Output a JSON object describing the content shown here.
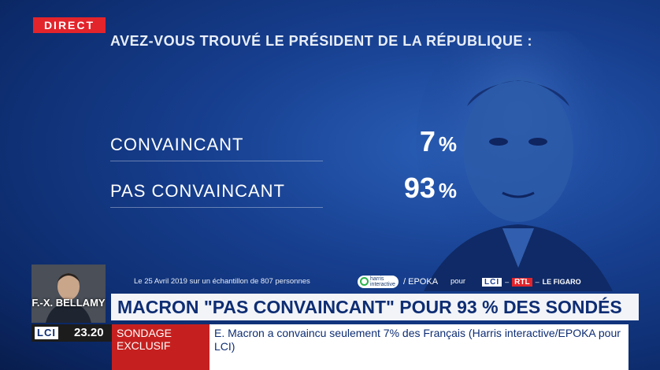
{
  "live_badge": "DIRECT",
  "poll": {
    "question": "AVEZ-VOUS TROUVÉ LE PRÉSIDENT DE LA RÉPUBLIQUE :",
    "results": [
      {
        "label": "CONVAINCANT",
        "value": "7",
        "unit": "%"
      },
      {
        "label": "PAS CONVAINCANT",
        "value": "93",
        "unit": "%"
      }
    ],
    "source_text": "Le 25 Avril 2019 sur un échantillon de 807 personnes",
    "source_logos": {
      "harris": "harris interactive",
      "separator": "/",
      "epoka": "EPOKA",
      "pour": "pour",
      "lci": "LCI",
      "rtl": "RTL",
      "figaro": "LE FIGARO"
    }
  },
  "guest": {
    "name": "F.-X. BELLAMY"
  },
  "headline": "MACRON \"PAS CONVAINCANT\" POUR  93 % DES SONDÉS",
  "channel": {
    "logo": "LCI",
    "time": "23.20"
  },
  "ticker": {
    "category": "SONDAGE EXCLUSIF",
    "text": "E. Macron a convaincu seulement 7% des Français (Harris interactive/EPOKA pour LCI)"
  },
  "colors": {
    "accent_red": "#e3242b",
    "navy": "#0e2d73",
    "background_blue": "#173f8f"
  }
}
